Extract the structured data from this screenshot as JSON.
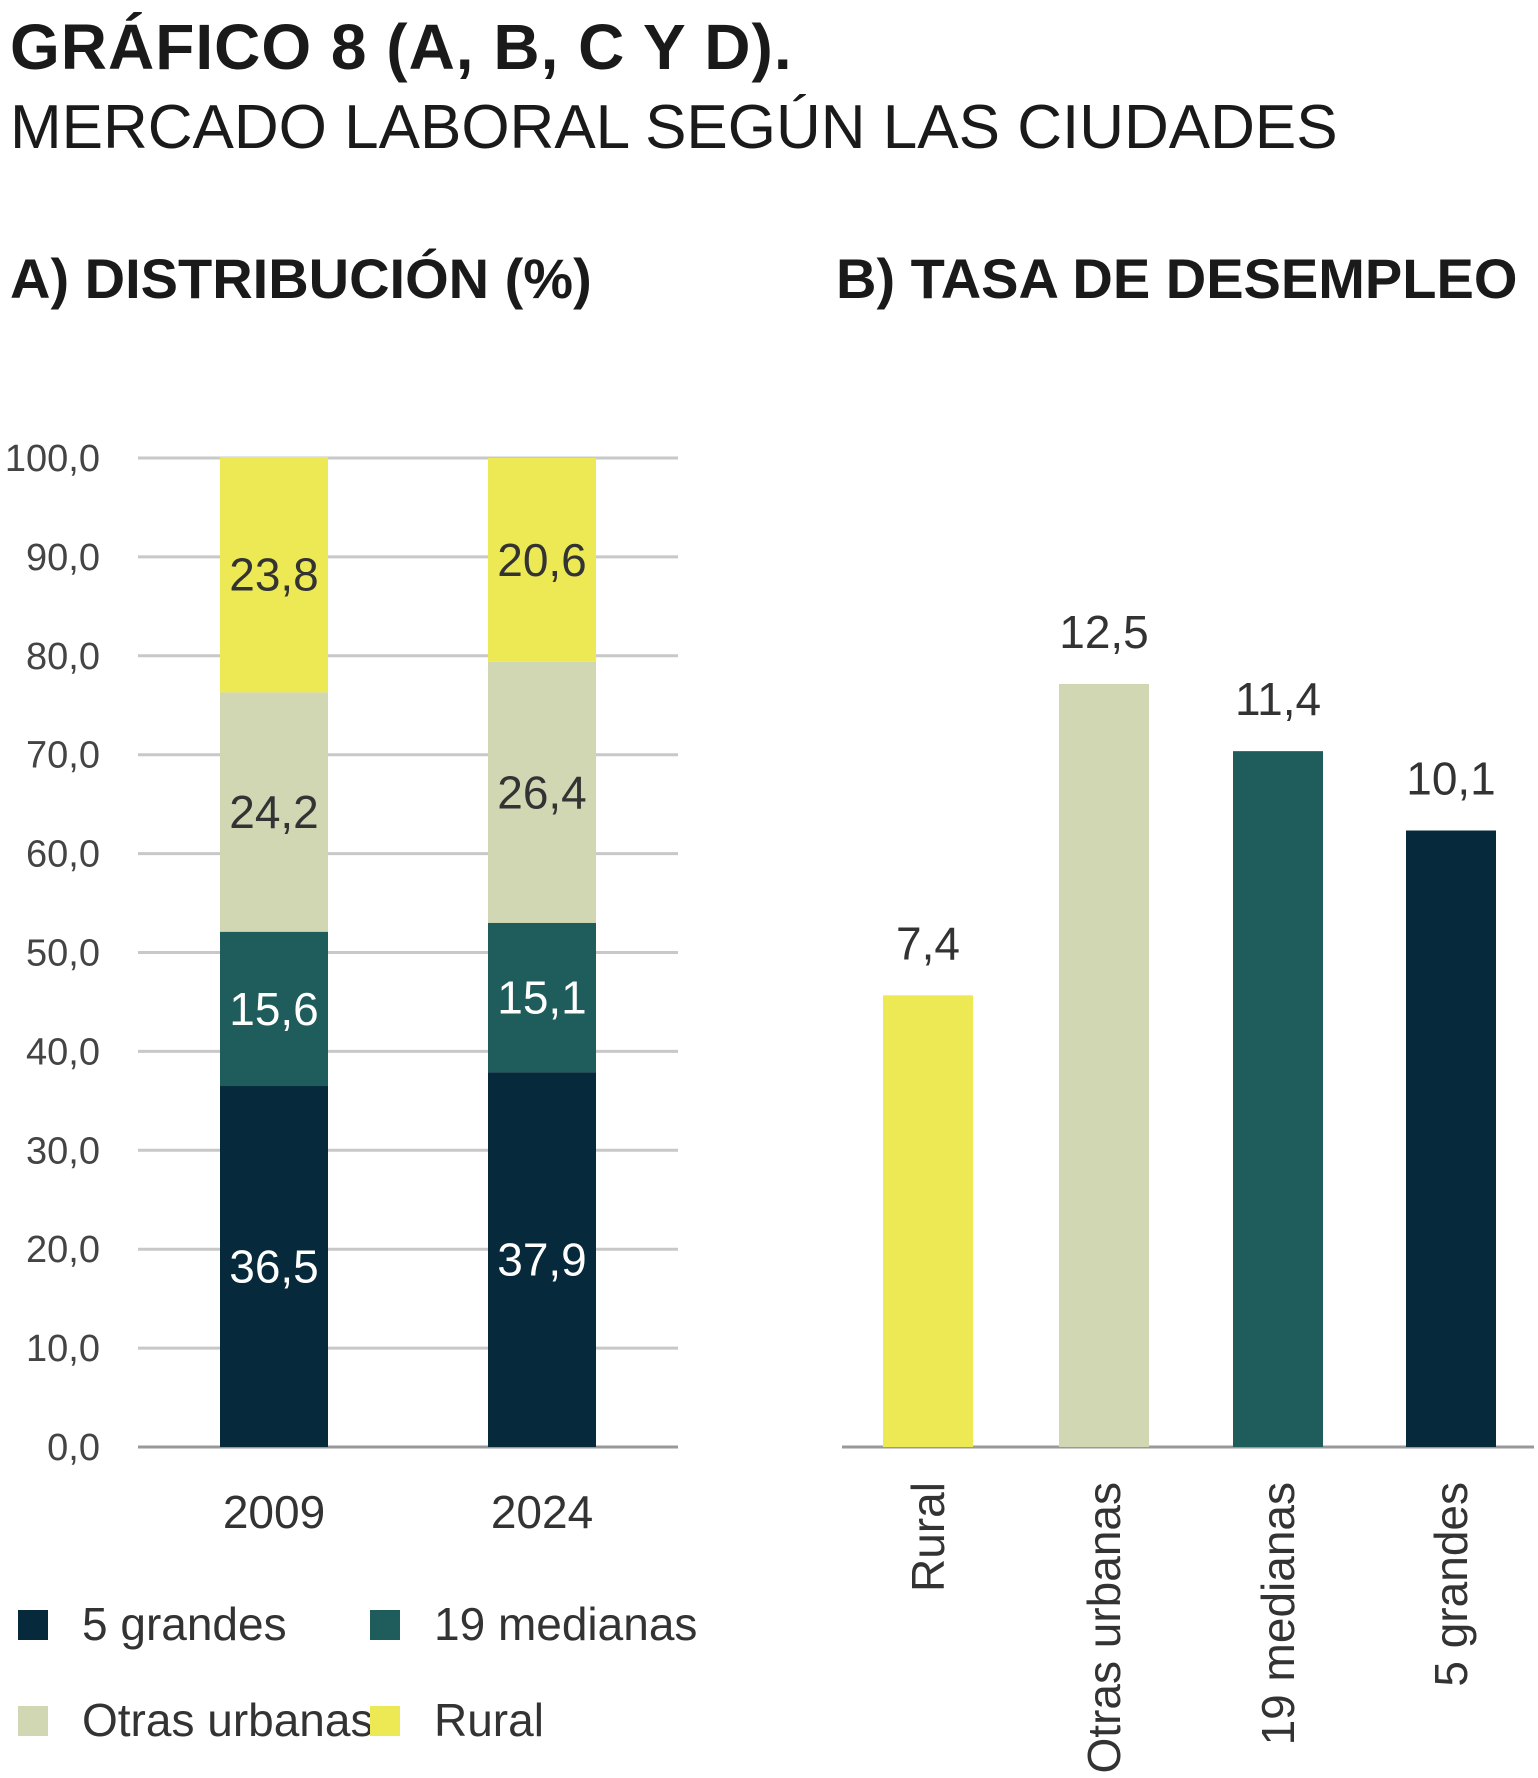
{
  "header": {
    "title": "GRÁFICO 8 (A, B, C Y D).",
    "subtitle": "MERCADO LABORAL SEGÚN LAS CIUDADES"
  },
  "colors": {
    "5 grandes": "#062a3b",
    "19 medianas": "#1f5c5c",
    "Otras urbanas": "#d1d6b3",
    "Rural": "#ece955",
    "gridline": "#c8c8c8",
    "axis": "#999999"
  },
  "chart_data": [
    {
      "id": "A",
      "type": "bar",
      "stacked": true,
      "title": "A) DISTRIBUCIÓN (%)",
      "categories": [
        "2009",
        "2024"
      ],
      "series": [
        {
          "name": "5 grandes",
          "values": [
            36.5,
            37.9
          ],
          "labels": [
            "36,5",
            "37,9"
          ]
        },
        {
          "name": "19 medianas",
          "values": [
            15.6,
            15.1
          ],
          "labels": [
            "15,6",
            "15,1"
          ]
        },
        {
          "name": "Otras urbanas",
          "values": [
            24.2,
            26.4
          ],
          "labels": [
            "24,2",
            "26,4"
          ]
        },
        {
          "name": "Rural",
          "values": [
            23.8,
            20.6
          ],
          "labels": [
            "23,8",
            "20,6"
          ]
        }
      ],
      "ylim": [
        0,
        100
      ],
      "yticks": [
        "0,0",
        "10,0",
        "20,0",
        "30,0",
        "40,0",
        "50,0",
        "60,0",
        "70,0",
        "80,0",
        "90,0",
        "100,0"
      ],
      "grid": true,
      "legend": [
        "5 grandes",
        "19 medianas",
        "Otras urbanas",
        "Rural"
      ],
      "legend_position": "bottom"
    },
    {
      "id": "B",
      "type": "bar",
      "title": "B) TASA DE DESEMPLEO",
      "categories": [
        "Rural",
        "Otras urbanas",
        "19 medianas",
        "5 grandes"
      ],
      "values": [
        7.4,
        12.5,
        11.4,
        10.1
      ],
      "labels": [
        "7,4",
        "12,5",
        "11,4",
        "10,1"
      ],
      "grid": false
    }
  ]
}
